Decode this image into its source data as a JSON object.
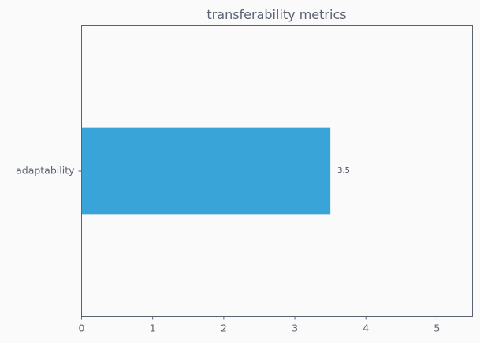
{
  "chart_data": {
    "type": "bar",
    "orientation": "horizontal",
    "title": "transferability metrics",
    "xlabel": "",
    "ylabel": "",
    "categories": [
      "adaptability"
    ],
    "values": [
      3.5
    ],
    "data_labels": [
      "3.5"
    ],
    "xlim": [
      0,
      5.5
    ],
    "xticks": [
      0,
      1,
      2,
      3,
      4,
      5
    ],
    "xtick_labels": [
      "0",
      "1",
      "2",
      "3",
      "4",
      "5"
    ],
    "grid": false,
    "bar_color": "#38a4d8"
  }
}
